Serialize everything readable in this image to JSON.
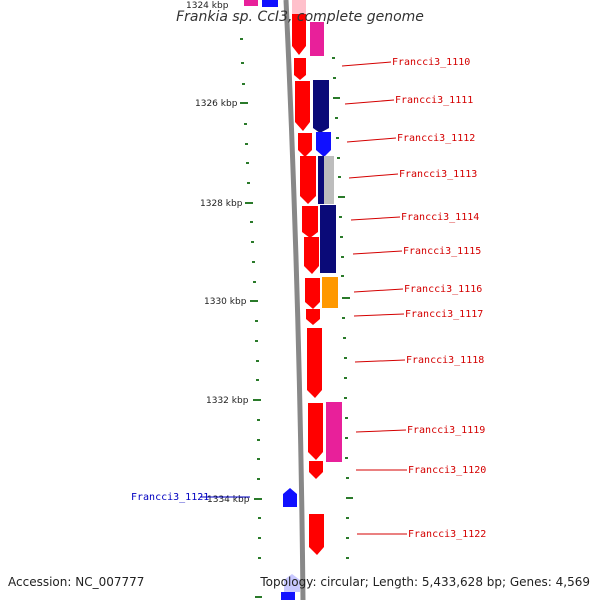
{
  "title": "Frankia sp. CcI3, complete genome",
  "footer": {
    "accession": "Accession: NC_007777",
    "topology": "Topology: circular; Length: 5,433,628 bp; Genes: 4,569"
  },
  "colors": {
    "backbone": "#888888",
    "tick": "#2a7a2a",
    "red_gene": "#ff0000",
    "navy_gene": "#0a0a78",
    "blue_gene": "#1010ff",
    "pink_gene": "#e8209a",
    "orange_gene": "#ff9900",
    "gray_gene": "#bdbdbd",
    "label_red": "#d40000",
    "label_blue": "#0000c0"
  },
  "kbp_labels": [
    "1324 kbp",
    "1326 kbp",
    "1328 kbp",
    "1330 kbp",
    "1332 kbp",
    "1334 kbp"
  ],
  "gene_labels": [
    "Francci3_1110",
    "Francci3_1111",
    "Francci3_1112",
    "Francci3_1113",
    "Francci3_1114",
    "Francci3_1115",
    "Francci3_1116",
    "Francci3_1117",
    "Francci3_1118",
    "Francci3_1119",
    "Francci3_1120",
    "Francci3_1121",
    "Francci3_1122"
  ]
}
